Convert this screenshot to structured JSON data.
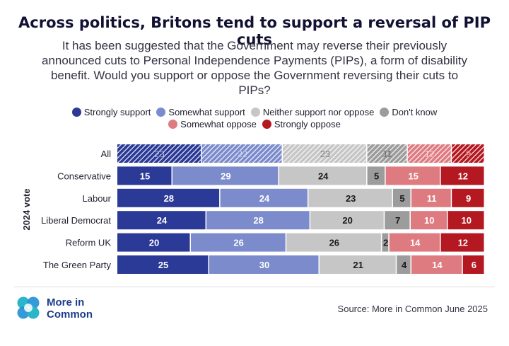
{
  "title": "Across politics, Britons tend to support a reversal of PIP cuts",
  "subtitle": "It has been suggested that the Government may reverse their previously announced cuts to Personal Independence Payments (PIPs), a form of disability benefit. Would you support or oppose the Government reversing their cuts to PIPs?",
  "source": "Source: More in Common June 2025",
  "brand": {
    "line1": "More in",
    "line2": "Common"
  },
  "chart_data": {
    "type": "bar",
    "orientation": "horizontal-stacked-100",
    "ylabel": "2024 vote",
    "categories": [
      "All",
      "Conservative",
      "Labour",
      "Liberal Democrat",
      "Reform UK",
      "The Green Party"
    ],
    "highlighted_category": "All",
    "legend_position": "top",
    "series": [
      {
        "name": "Strongly support",
        "color": "#2a3a96",
        "values": [
          23,
          15,
          28,
          24,
          20,
          25
        ]
      },
      {
        "name": "Somewhat support",
        "color": "#7b8bcb",
        "values": [
          22,
          29,
          24,
          28,
          26,
          30
        ]
      },
      {
        "name": "Neither support nor oppose",
        "color": "#c6c6c6",
        "values": [
          23,
          24,
          23,
          20,
          26,
          21
        ]
      },
      {
        "name": "Don't know",
        "color": "#9c9c9c",
        "values": [
          11,
          5,
          5,
          7,
          2,
          4
        ]
      },
      {
        "name": "Somewhat oppose",
        "color": "#de7b80",
        "values": [
          12,
          15,
          11,
          10,
          14,
          14
        ]
      },
      {
        "name": "Strongly oppose",
        "color": "#b41820",
        "values": [
          9,
          12,
          9,
          10,
          12,
          6
        ]
      }
    ]
  }
}
